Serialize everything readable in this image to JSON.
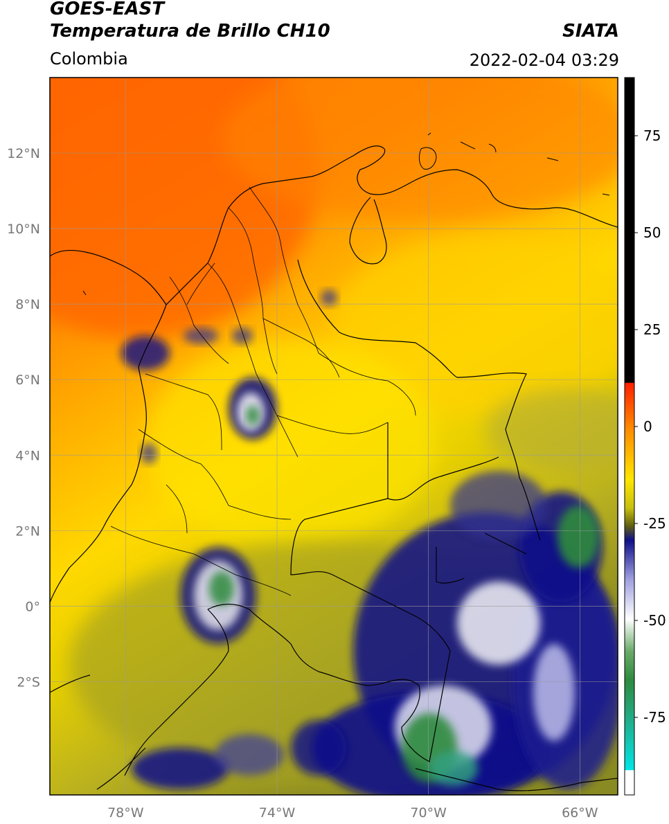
{
  "header": {
    "satellite": "GOES-EAST",
    "product": "Temperatura de Brillo CH10",
    "region": "Colombia",
    "agency": "SIATA",
    "datetime": "2022-02-04 03:29"
  },
  "map": {
    "lon_range": [
      -80,
      -65
    ],
    "lat_range": [
      -5,
      14
    ],
    "lon_ticks": [
      {
        "value": -78,
        "label": "78°W"
      },
      {
        "value": -74,
        "label": "74°W"
      },
      {
        "value": -70,
        "label": "70°W"
      },
      {
        "value": -66,
        "label": "66°W"
      }
    ],
    "lat_ticks": [
      {
        "value": 12,
        "label": "12°N"
      },
      {
        "value": 10,
        "label": "10°N"
      },
      {
        "value": 8,
        "label": "8°N"
      },
      {
        "value": 6,
        "label": "6°N"
      },
      {
        "value": 4,
        "label": "4°N"
      },
      {
        "value": 2,
        "label": "2°N"
      },
      {
        "value": 0,
        "label": "0°"
      },
      {
        "value": -2,
        "label": "2°S"
      }
    ]
  },
  "colorbar": {
    "range": [
      -95,
      90
    ],
    "ticks": [
      {
        "value": 75,
        "label": "75"
      },
      {
        "value": 50,
        "label": "50"
      },
      {
        "value": 25,
        "label": "25"
      },
      {
        "value": 0,
        "label": "0"
      },
      {
        "value": -25,
        "label": "-25"
      },
      {
        "value": -50,
        "label": "-50"
      },
      {
        "value": -75,
        "label": "-75"
      }
    ],
    "colors": {
      "black": "#000000",
      "red": "#e81010",
      "orange": "#ff8c00",
      "yellow": "#ffe600",
      "olive": "#8a8a20",
      "navy": "#10108a",
      "white": "#ffffff",
      "green": "#2e8b3e",
      "teal": "#20c0a0",
      "cyan": "#00e5e5"
    }
  }
}
